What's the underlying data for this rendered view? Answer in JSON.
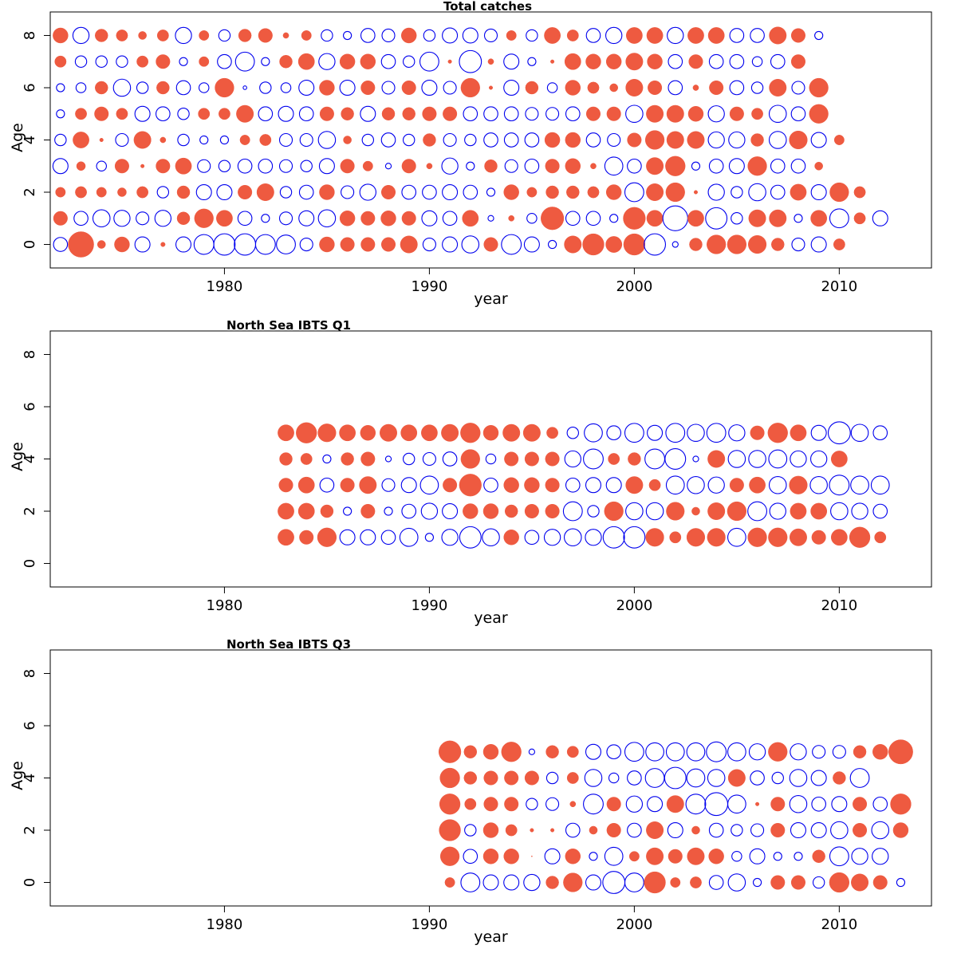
{
  "colors": {
    "positive": "#ee5a40",
    "negative": "#0000ee"
  },
  "chart_data": [
    {
      "type": "scatter",
      "title": "Total catches",
      "xlabel": "year",
      "ylabel": "Age",
      "xlim": [
        1971.5,
        2014.5
      ],
      "ylim": [
        -0.9,
        8.9
      ],
      "xticks": [
        1980,
        1990,
        2000,
        2010
      ],
      "yticks": [
        0,
        2,
        4,
        6,
        8
      ],
      "x_start": 1972,
      "ages": [
        0,
        1,
        2,
        3,
        4,
        5,
        6,
        7,
        8
      ],
      "residuals": [
        [
          -0.3,
          1.0,
          0.1,
          0.35,
          -0.35,
          0.03,
          -0.35,
          -0.6,
          -0.7,
          -0.7,
          -0.6,
          -0.55,
          -0.25,
          0.35,
          0.3,
          0.3,
          0.3,
          0.45,
          -0.25,
          -0.35,
          -0.45,
          0.3,
          -0.6,
          -0.35,
          -0.1,
          0.45,
          0.7,
          0.4,
          0.7,
          -0.7,
          -0.05,
          0.25,
          0.55,
          0.55,
          0.5,
          0.25,
          -0.25,
          -0.35,
          0.2
        ],
        [
          0.3,
          -0.3,
          -0.45,
          -0.4,
          -0.25,
          -0.4,
          0.25,
          0.55,
          0.4,
          -0.3,
          -0.1,
          -0.25,
          -0.35,
          -0.45,
          0.35,
          0.3,
          0.35,
          0.3,
          -0.35,
          -0.3,
          0.4,
          -0.05,
          0.05,
          -0.15,
          0.8,
          -0.3,
          -0.3,
          -0.1,
          0.75,
          0.4,
          -0.95,
          0.4,
          -0.7,
          -0.2,
          0.45,
          0.45,
          -0.1,
          0.4,
          -0.55,
          0.2,
          -0.35
        ],
        [
          0.15,
          0.2,
          0.15,
          0.12,
          0.2,
          -0.2,
          0.25,
          -0.35,
          -0.35,
          0.3,
          0.45,
          -0.2,
          -0.3,
          0.35,
          -0.25,
          -0.4,
          0.3,
          -0.3,
          -0.3,
          -0.35,
          -0.3,
          -0.1,
          0.35,
          0.15,
          0.25,
          0.25,
          0.2,
          0.35,
          -0.55,
          0.45,
          0.55,
          0.02,
          -0.4,
          -0.2,
          -0.45,
          -0.3,
          0.4,
          -0.35,
          0.55,
          0.2
        ],
        [
          -0.35,
          0.12,
          -0.15,
          0.3,
          0.02,
          0.3,
          0.4,
          -0.25,
          -0.2,
          -0.3,
          -0.3,
          -0.25,
          -0.2,
          -0.35,
          0.3,
          0.15,
          -0.05,
          0.3,
          0.05,
          -0.4,
          -0.1,
          0.25,
          -0.25,
          -0.3,
          0.3,
          0.35,
          0.05,
          -0.5,
          -0.3,
          0.45,
          0.6,
          -0.1,
          -0.3,
          -0.35,
          0.55,
          -0.3,
          -0.3,
          0.1
        ],
        [
          -0.2,
          0.4,
          0.02,
          -0.25,
          0.45,
          0.05,
          -0.2,
          -0.1,
          -0.1,
          0.15,
          0.2,
          -0.25,
          -0.25,
          -0.45,
          0.1,
          -0.2,
          -0.3,
          -0.2,
          0.25,
          -0.25,
          -0.2,
          -0.3,
          -0.3,
          -0.3,
          0.35,
          0.35,
          -0.3,
          -0.25,
          0.3,
          0.55,
          0.45,
          0.45,
          -0.4,
          -0.4,
          0.25,
          -0.45,
          0.5,
          -0.35,
          0.15
        ],
        [
          -0.1,
          0.2,
          0.3,
          0.2,
          -0.35,
          -0.3,
          -0.2,
          0.2,
          0.2,
          0.45,
          -0.3,
          -0.35,
          -0.3,
          0.3,
          0.25,
          -0.35,
          0.25,
          0.25,
          0.3,
          0.3,
          -0.3,
          -0.3,
          -0.3,
          -0.25,
          -0.25,
          -0.3,
          0.3,
          0.3,
          -0.45,
          0.45,
          0.45,
          0.35,
          -0.4,
          0.3,
          0.2,
          -0.45,
          -0.3,
          0.55
        ],
        [
          -0.1,
          -0.15,
          0.25,
          -0.45,
          -0.2,
          0.25,
          -0.3,
          -0.15,
          0.55,
          -0.02,
          -0.2,
          -0.15,
          -0.35,
          0.35,
          -0.35,
          0.3,
          -0.25,
          0.3,
          -0.35,
          -0.25,
          0.55,
          0.02,
          -0.35,
          0.25,
          -0.15,
          0.35,
          0.2,
          0.1,
          0.45,
          0.3,
          -0.3,
          0.05,
          0.3,
          -0.3,
          -0.2,
          0.45,
          -0.25,
          0.55
        ],
        [
          0.2,
          -0.2,
          -0.2,
          -0.2,
          0.2,
          0.3,
          -0.1,
          0.15,
          -0.3,
          -0.55,
          -0.1,
          0.25,
          0.4,
          -0.4,
          0.35,
          0.35,
          -0.3,
          -0.2,
          -0.55,
          0.02,
          -0.75,
          0.05,
          -0.35,
          -0.1,
          0.02,
          0.4,
          0.35,
          0.35,
          0.45,
          0.35,
          -0.3,
          0.3,
          -0.3,
          -0.3,
          -0.15,
          -0.3,
          0.3
        ],
        [
          0.35,
          -0.4,
          0.25,
          0.2,
          0.1,
          0.2,
          -0.4,
          0.15,
          -0.2,
          0.25,
          0.3,
          0.05,
          0.15,
          -0.2,
          -0.1,
          -0.3,
          -0.25,
          0.35,
          -0.2,
          -0.35,
          -0.35,
          -0.25,
          0.15,
          -0.2,
          0.4,
          0.2,
          -0.3,
          -0.4,
          0.4,
          0.4,
          -0.4,
          0.4,
          0.4,
          -0.3,
          -0.3,
          0.45,
          0.3,
          -0.1
        ]
      ]
    },
    {
      "type": "scatter",
      "title": "North Sea IBTS Q1",
      "xlabel": "year",
      "ylabel": "Age",
      "xlim": [
        1971.5,
        2014.5
      ],
      "ylim": [
        -0.9,
        8.9
      ],
      "xticks": [
        1980,
        1990,
        2000,
        2010
      ],
      "yticks": [
        0,
        2,
        4,
        6,
        8
      ],
      "x_start": 1983,
      "ages": [
        1,
        2,
        3,
        4,
        5
      ],
      "residuals": [
        [
          0.4,
          0.3,
          0.55,
          -0.35,
          -0.35,
          -0.3,
          -0.5,
          -0.1,
          -0.4,
          -0.7,
          -0.45,
          0.35,
          -0.3,
          -0.4,
          -0.45,
          -0.4,
          -0.7,
          -0.7,
          0.5,
          0.2,
          0.5,
          0.5,
          -0.5,
          0.55,
          0.55,
          0.45,
          0.3,
          0.4,
          0.65,
          0.2
        ],
        [
          0.4,
          0.4,
          0.25,
          -0.1,
          0.3,
          -0.1,
          -0.3,
          -0.4,
          -0.35,
          0.35,
          0.35,
          0.25,
          0.3,
          0.3,
          -0.55,
          -0.2,
          0.55,
          -0.45,
          -0.45,
          0.5,
          0.1,
          0.45,
          0.55,
          -0.55,
          -0.4,
          0.4,
          0.4,
          -0.45,
          -0.4,
          -0.3
        ],
        [
          0.3,
          0.4,
          -0.3,
          0.3,
          0.45,
          -0.25,
          -0.35,
          -0.5,
          0.3,
          0.75,
          -0.3,
          0.35,
          0.35,
          0.3,
          -0.3,
          -0.35,
          -0.35,
          0.45,
          0.2,
          -0.5,
          -0.45,
          -0.4,
          0.3,
          0.4,
          -0.45,
          0.5,
          -0.45,
          -0.6,
          -0.5,
          -0.5
        ],
        [
          0.25,
          0.2,
          -0.1,
          0.25,
          0.3,
          -0.05,
          -0.2,
          -0.25,
          -0.3,
          0.55,
          -0.15,
          0.3,
          0.3,
          0.3,
          -0.4,
          -0.6,
          0.2,
          0.25,
          -0.6,
          -0.65,
          -0.05,
          0.45,
          -0.45,
          -0.45,
          -0.5,
          -0.4,
          -0.4,
          0.4
        ],
        [
          0.4,
          0.65,
          0.5,
          0.4,
          0.35,
          0.45,
          0.4,
          0.4,
          0.45,
          0.6,
          0.35,
          0.45,
          0.45,
          0.2,
          -0.2,
          -0.5,
          -0.3,
          -0.55,
          -0.35,
          -0.55,
          -0.45,
          -0.55,
          -0.4,
          0.3,
          0.6,
          0.4,
          -0.35,
          -0.75,
          -0.45,
          -0.3
        ]
      ]
    },
    {
      "type": "scatter",
      "title": "North Sea IBTS Q3",
      "xlabel": "year",
      "ylabel": "Age",
      "xlim": [
        1971.5,
        2014.5
      ],
      "ylim": [
        -0.9,
        8.9
      ],
      "xticks": [
        1980,
        1990,
        2000,
        2010
      ],
      "yticks": [
        0,
        2,
        4,
        6,
        8
      ],
      "x_start": 1991,
      "ages": [
        0,
        1,
        2,
        3,
        4,
        5
      ],
      "residuals": [
        [
          0.15,
          -0.55,
          -0.35,
          -0.35,
          -0.4,
          0.25,
          0.55,
          -0.35,
          -0.75,
          -0.55,
          0.7,
          0.15,
          0.2,
          -0.3,
          -0.45,
          -0.1,
          0.3,
          0.3,
          -0.2,
          0.6,
          0.45,
          0.3,
          -0.1
        ],
        [
          0.55,
          -0.3,
          0.35,
          0.35,
          0.0,
          -0.35,
          0.35,
          -0.1,
          -0.5,
          0.15,
          0.45,
          0.3,
          0.45,
          0.35,
          -0.15,
          -0.35,
          -0.1,
          -0.1,
          0.25,
          -0.55,
          -0.4,
          -0.4
        ],
        [
          0.7,
          -0.2,
          0.35,
          0.2,
          0.02,
          0.02,
          -0.3,
          0.1,
          0.3,
          -0.3,
          0.45,
          -0.35,
          0.1,
          -0.3,
          -0.2,
          -0.25,
          0.3,
          -0.35,
          -0.35,
          -0.45,
          0.3,
          -0.45,
          0.35
        ],
        [
          0.65,
          0.2,
          0.3,
          0.3,
          -0.2,
          -0.25,
          0.05,
          -0.6,
          0.3,
          -0.4,
          -0.35,
          0.45,
          -0.6,
          -0.8,
          -0.5,
          0.02,
          0.3,
          -0.45,
          -0.3,
          -0.35,
          0.3,
          -0.3,
          0.65
        ],
        [
          0.6,
          0.25,
          0.3,
          0.3,
          0.3,
          -0.2,
          0.2,
          -0.45,
          -0.15,
          -0.3,
          -0.55,
          -0.7,
          -0.5,
          -0.45,
          0.45,
          -0.3,
          -0.2,
          -0.45,
          -0.35,
          0.25,
          -0.55
        ],
        [
          0.75,
          0.25,
          0.35,
          0.6,
          -0.05,
          0.25,
          0.2,
          -0.35,
          -0.3,
          -0.55,
          -0.5,
          -0.5,
          -0.5,
          -0.6,
          -0.5,
          -0.4,
          0.55,
          -0.4,
          -0.25,
          -0.25,
          0.25,
          0.35,
          0.9
        ]
      ]
    }
  ]
}
